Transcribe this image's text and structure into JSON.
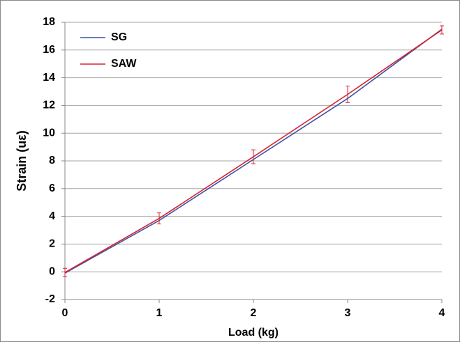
{
  "chart_data": {
    "type": "line",
    "x_label": "Load (kg)",
    "y_label": "Strain (uε)",
    "x": [
      0,
      1,
      2,
      3,
      4
    ],
    "series": [
      {
        "name": "SG",
        "color": "#3a54a4",
        "values": [
          -0.1,
          3.7,
          8.1,
          12.5,
          17.5
        ]
      },
      {
        "name": "SAW",
        "color": "#d9202f",
        "values": [
          -0.05,
          3.85,
          8.3,
          12.8,
          17.45
        ],
        "errors": [
          0.3,
          0.4,
          0.5,
          0.6,
          0.3
        ]
      }
    ],
    "xlim": [
      0,
      4
    ],
    "xticks": [
      0,
      1,
      2,
      3,
      4
    ],
    "ylim": [
      -2,
      18
    ],
    "yticks": [
      -2,
      0,
      2,
      4,
      6,
      8,
      10,
      12,
      14,
      16,
      18
    ],
    "grid": true,
    "legend": "upper-left"
  }
}
